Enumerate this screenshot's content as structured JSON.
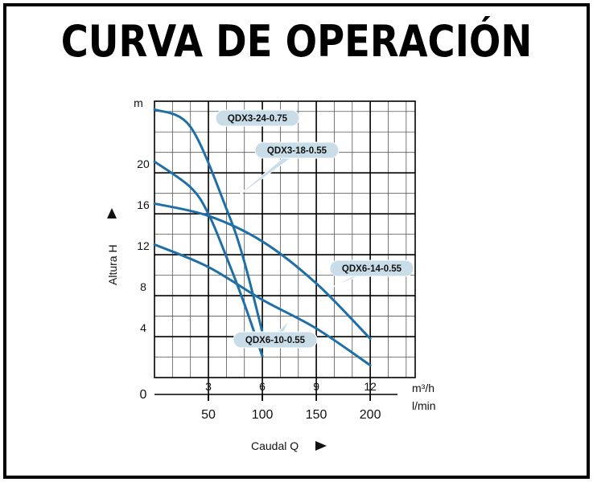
{
  "title": "CURVA DE OPERACIÓN",
  "chart_data": {
    "type": "line",
    "x_label": "Caudal Q",
    "y_label": "Altura H",
    "y_unit": "m",
    "x_unit_1": "m³/h",
    "x_unit_2": "l/min",
    "origin_label": "0",
    "x_ticks_1": [
      "3",
      "6",
      "9",
      "12"
    ],
    "x_ticks_2": [
      "50",
      "100",
      "150",
      "200"
    ],
    "y_ticks": [
      "4",
      "8",
      "12",
      "16",
      "20"
    ],
    "xlim": [
      0,
      14.5
    ],
    "ylim": [
      0,
      27
    ],
    "grid": true,
    "series": [
      {
        "name": "QDX3-24-0.75",
        "x": [
          0,
          2,
          4,
          5,
          6.2
        ],
        "y": [
          26.2,
          24.5,
          16.5,
          11.3,
          3.0
        ]
      },
      {
        "name": "QDX3-18-0.55",
        "x": [
          0,
          2,
          3,
          4,
          5,
          6
        ],
        "y": [
          21.1,
          18.6,
          16.0,
          11.8,
          7.2,
          2.1
        ]
      },
      {
        "name": "QDX6-14-0.55",
        "x": [
          0,
          3,
          6,
          9,
          12
        ],
        "y": [
          17.0,
          15.8,
          13.3,
          9.2,
          3.8
        ]
      },
      {
        "name": "QDX6-10-0.55",
        "x": [
          0,
          3,
          6,
          9,
          12
        ],
        "y": [
          13.0,
          10.8,
          7.6,
          4.8,
          1.2
        ]
      }
    ]
  },
  "colors": {
    "curve": "#1e6fa8",
    "callout_fill": "#c9dde9",
    "grid": "#555555",
    "frame": "#000000"
  }
}
